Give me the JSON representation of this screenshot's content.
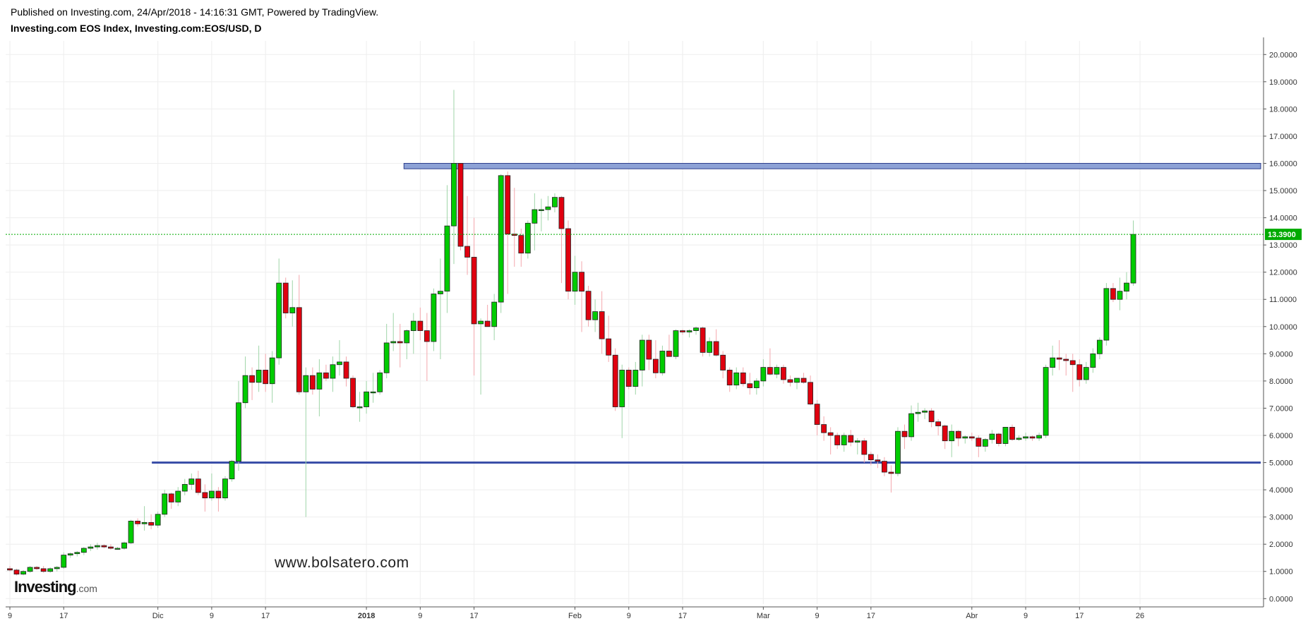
{
  "header": {
    "published": "Published on Investing.com, 24/Apr/2018 - 14:16:31 GMT, Powered by TradingView.",
    "title": "Investing.com EOS Index, Investing.com:EOS/USD, D"
  },
  "watermark": "www.bolsatero.com",
  "logo": {
    "name": "Investing",
    "suffix": ".com"
  },
  "colors": {
    "up": "#00cc00",
    "down": "#e0000f",
    "resistance": "#8da2d6",
    "support": "#3b4fa8",
    "price_line": "#00aa00"
  },
  "chart_data": {
    "type": "candlestick",
    "ylim": [
      -0.2,
      20.5
    ],
    "y_ticks": [
      "0.0000",
      "1.0000",
      "2.0000",
      "3.0000",
      "4.0000",
      "5.0000",
      "6.0000",
      "7.0000",
      "8.0000",
      "9.0000",
      "10.0000",
      "11.0000",
      "12.0000",
      "13.0000",
      "14.0000",
      "15.0000",
      "16.0000",
      "17.0000",
      "18.0000",
      "19.0000",
      "20.0000"
    ],
    "x_ticks": [
      {
        "label": "9",
        "day": 0
      },
      {
        "label": "17",
        "day": 8
      },
      {
        "label": "Dic",
        "day": 22
      },
      {
        "label": "9",
        "day": 30
      },
      {
        "label": "17",
        "day": 38
      },
      {
        "label": "2018",
        "day": 53
      },
      {
        "label": "9",
        "day": 61
      },
      {
        "label": "17",
        "day": 69
      },
      {
        "label": "Feb",
        "day": 84
      },
      {
        "label": "9",
        "day": 92
      },
      {
        "label": "17",
        "day": 100
      },
      {
        "label": "Mar",
        "day": 112
      },
      {
        "label": "9",
        "day": 120
      },
      {
        "label": "17",
        "day": 128
      },
      {
        "label": "Abr",
        "day": 143
      },
      {
        "label": "9",
        "day": 151
      },
      {
        "label": "17",
        "day": 159
      },
      {
        "label": "26",
        "day": 168
      }
    ],
    "last_price": "13.3900",
    "zones": [
      {
        "type": "resistance",
        "from": 15.8,
        "to": 16.0,
        "start_day": 59
      },
      {
        "type": "support",
        "level": 5.0,
        "start_day": 21
      }
    ],
    "ohlc": [
      [
        1.1,
        1.2,
        1.0,
        1.05
      ],
      [
        1.05,
        1.1,
        0.85,
        0.9
      ],
      [
        0.9,
        1.05,
        0.85,
        1.0
      ],
      [
        1.0,
        1.2,
        0.95,
        1.15
      ],
      [
        1.15,
        1.2,
        1.05,
        1.1
      ],
      [
        1.1,
        1.2,
        0.95,
        1.0
      ],
      [
        1.0,
        1.15,
        0.95,
        1.1
      ],
      [
        1.1,
        1.2,
        1.0,
        1.15
      ],
      [
        1.15,
        1.7,
        1.1,
        1.6
      ],
      [
        1.6,
        1.7,
        1.5,
        1.65
      ],
      [
        1.65,
        1.75,
        1.55,
        1.7
      ],
      [
        1.7,
        1.9,
        1.6,
        1.85
      ],
      [
        1.85,
        2.0,
        1.75,
        1.9
      ],
      [
        1.9,
        2.05,
        1.8,
        1.95
      ],
      [
        1.95,
        2.0,
        1.85,
        1.9
      ],
      [
        1.9,
        2.0,
        1.8,
        1.85
      ],
      [
        1.85,
        1.9,
        1.8,
        1.85
      ],
      [
        1.85,
        2.1,
        1.8,
        2.05
      ],
      [
        2.05,
        2.9,
        2.0,
        2.85
      ],
      [
        2.85,
        2.95,
        2.65,
        2.75
      ],
      [
        2.75,
        3.4,
        2.5,
        2.8
      ],
      [
        2.8,
        3.1,
        2.55,
        2.7
      ],
      [
        2.7,
        3.2,
        2.6,
        3.1
      ],
      [
        3.1,
        4.0,
        3.0,
        3.85
      ],
      [
        3.85,
        3.9,
        3.3,
        3.55
      ],
      [
        3.55,
        4.1,
        3.4,
        3.95
      ],
      [
        3.95,
        4.4,
        3.8,
        4.2
      ],
      [
        4.2,
        4.6,
        4.0,
        4.4
      ],
      [
        4.4,
        4.7,
        3.8,
        3.9
      ],
      [
        3.9,
        4.2,
        3.2,
        3.7
      ],
      [
        3.7,
        4.6,
        3.6,
        3.95
      ],
      [
        3.95,
        4.1,
        3.2,
        3.7
      ],
      [
        3.7,
        4.5,
        3.6,
        4.4
      ],
      [
        4.4,
        5.1,
        4.3,
        5.05
      ],
      [
        5.05,
        8.0,
        4.7,
        7.2
      ],
      [
        7.2,
        8.9,
        7.0,
        8.2
      ],
      [
        8.2,
        8.5,
        7.3,
        7.95
      ],
      [
        7.95,
        9.3,
        7.6,
        8.4
      ],
      [
        8.4,
        9.0,
        7.6,
        7.9
      ],
      [
        7.9,
        9.1,
        7.2,
        8.85
      ],
      [
        8.85,
        12.5,
        8.6,
        11.6
      ],
      [
        11.6,
        11.8,
        10.3,
        10.5
      ],
      [
        10.5,
        11.7,
        10.0,
        10.7
      ],
      [
        10.7,
        11.9,
        7.5,
        7.6
      ],
      [
        7.6,
        8.5,
        3.0,
        8.2
      ],
      [
        8.2,
        8.5,
        7.5,
        7.7
      ],
      [
        7.7,
        8.8,
        6.7,
        8.3
      ],
      [
        8.3,
        8.6,
        8.0,
        8.1
      ],
      [
        8.1,
        8.9,
        7.6,
        8.6
      ],
      [
        8.6,
        9.5,
        8.2,
        8.7
      ],
      [
        8.7,
        8.9,
        7.8,
        8.1
      ],
      [
        8.1,
        8.2,
        7.0,
        7.05
      ],
      [
        7.05,
        7.6,
        6.5,
        7.05
      ],
      [
        7.05,
        8.0,
        6.8,
        7.6
      ],
      [
        7.6,
        8.3,
        7.2,
        7.6
      ],
      [
        7.6,
        8.4,
        7.5,
        8.3
      ],
      [
        8.3,
        10.1,
        8.1,
        9.4
      ],
      [
        9.4,
        10.5,
        9.1,
        9.45
      ],
      [
        9.45,
        10.1,
        8.5,
        9.4
      ],
      [
        9.4,
        9.9,
        8.8,
        9.85
      ],
      [
        9.85,
        10.5,
        9.0,
        10.2
      ],
      [
        10.2,
        10.7,
        9.5,
        9.85
      ],
      [
        9.85,
        10.5,
        8.0,
        9.45
      ],
      [
        9.45,
        11.4,
        9.1,
        11.2
      ],
      [
        11.2,
        12.5,
        8.8,
        11.3
      ],
      [
        11.3,
        15.2,
        10.5,
        13.7
      ],
      [
        13.7,
        18.7,
        12.3,
        16.0
      ],
      [
        16.0,
        16.0,
        12.8,
        12.95
      ],
      [
        12.95,
        14.8,
        11.9,
        12.55
      ],
      [
        12.55,
        14.0,
        8.2,
        10.1
      ],
      [
        10.1,
        10.3,
        7.5,
        10.2
      ],
      [
        10.2,
        10.8,
        10.0,
        10.0
      ],
      [
        10.0,
        11.2,
        9.5,
        10.9
      ],
      [
        10.9,
        15.6,
        10.5,
        15.55
      ],
      [
        15.55,
        15.7,
        11.2,
        13.4
      ],
      [
        13.4,
        15.1,
        12.2,
        13.35
      ],
      [
        13.35,
        13.6,
        12.2,
        12.7
      ],
      [
        12.7,
        13.9,
        12.5,
        13.8
      ],
      [
        13.8,
        14.9,
        12.8,
        14.3
      ],
      [
        14.3,
        14.7,
        13.5,
        14.3
      ],
      [
        14.3,
        14.8,
        13.9,
        14.4
      ],
      [
        14.4,
        14.9,
        14.2,
        14.75
      ],
      [
        14.75,
        14.8,
        11.6,
        13.6
      ],
      [
        13.6,
        13.9,
        11.0,
        11.3
      ],
      [
        11.3,
        12.6,
        10.8,
        12.0
      ],
      [
        12.0,
        12.4,
        9.8,
        11.3
      ],
      [
        11.3,
        11.5,
        10.0,
        10.25
      ],
      [
        10.25,
        11.0,
        9.8,
        10.55
      ],
      [
        10.55,
        11.3,
        9.0,
        9.55
      ],
      [
        9.55,
        10.4,
        8.7,
        8.95
      ],
      [
        8.95,
        9.2,
        6.9,
        7.05
      ],
      [
        7.05,
        8.6,
        5.9,
        8.4
      ],
      [
        8.4,
        8.5,
        7.7,
        7.8
      ],
      [
        7.8,
        8.7,
        7.5,
        8.4
      ],
      [
        8.4,
        9.7,
        7.8,
        9.5
      ],
      [
        9.5,
        9.7,
        8.4,
        8.8
      ],
      [
        8.8,
        9.5,
        8.1,
        8.3
      ],
      [
        8.3,
        9.3,
        8.2,
        9.1
      ],
      [
        9.1,
        9.7,
        8.9,
        8.9
      ],
      [
        8.9,
        9.9,
        8.8,
        9.85
      ],
      [
        9.85,
        9.9,
        9.7,
        9.8
      ],
      [
        9.8,
        9.9,
        9.6,
        9.85
      ],
      [
        9.85,
        10.0,
        9.7,
        9.95
      ],
      [
        9.95,
        10.0,
        8.9,
        9.05
      ],
      [
        9.05,
        9.6,
        8.9,
        9.45
      ],
      [
        9.45,
        9.9,
        8.9,
        8.95
      ],
      [
        8.95,
        9.1,
        8.1,
        8.4
      ],
      [
        8.4,
        8.5,
        7.6,
        7.85
      ],
      [
        7.85,
        8.5,
        7.7,
        8.3
      ],
      [
        8.3,
        8.5,
        7.8,
        7.9
      ],
      [
        7.9,
        8.3,
        7.5,
        7.75
      ],
      [
        7.75,
        8.1,
        7.5,
        8.0
      ],
      [
        8.0,
        8.8,
        7.8,
        8.5
      ],
      [
        8.5,
        9.2,
        8.2,
        8.25
      ],
      [
        8.25,
        8.6,
        8.1,
        8.5
      ],
      [
        8.5,
        8.6,
        7.9,
        8.05
      ],
      [
        8.05,
        8.2,
        7.8,
        7.95
      ],
      [
        7.95,
        8.1,
        7.7,
        8.1
      ],
      [
        8.1,
        8.3,
        7.9,
        7.95
      ],
      [
        7.95,
        8.2,
        7.1,
        7.15
      ],
      [
        7.15,
        7.3,
        6.0,
        6.4
      ],
      [
        6.4,
        6.7,
        5.8,
        6.1
      ],
      [
        6.1,
        6.3,
        5.3,
        6.0
      ],
      [
        6.0,
        6.1,
        5.5,
        5.65
      ],
      [
        5.65,
        6.1,
        5.4,
        6.0
      ],
      [
        6.0,
        6.2,
        5.6,
        5.75
      ],
      [
        5.75,
        5.9,
        5.3,
        5.8
      ],
      [
        5.8,
        5.9,
        5.0,
        5.3
      ],
      [
        5.3,
        5.4,
        4.9,
        5.1
      ],
      [
        5.1,
        5.3,
        4.8,
        5.05
      ],
      [
        5.05,
        5.2,
        4.5,
        4.65
      ],
      [
        4.65,
        4.9,
        3.9,
        4.6
      ],
      [
        4.6,
        6.3,
        4.5,
        6.15
      ],
      [
        6.15,
        6.4,
        5.5,
        5.95
      ],
      [
        5.95,
        7.1,
        5.8,
        6.8
      ],
      [
        6.8,
        7.2,
        6.5,
        6.85
      ],
      [
        6.85,
        7.0,
        6.6,
        6.9
      ],
      [
        6.9,
        7.0,
        6.3,
        6.5
      ],
      [
        6.5,
        6.6,
        6.0,
        6.35
      ],
      [
        6.35,
        6.4,
        5.5,
        5.8
      ],
      [
        5.8,
        6.4,
        5.2,
        6.15
      ],
      [
        6.15,
        6.2,
        5.6,
        5.9
      ],
      [
        5.9,
        6.0,
        5.7,
        5.95
      ],
      [
        5.95,
        6.1,
        5.8,
        5.9
      ],
      [
        5.9,
        6.0,
        5.2,
        5.6
      ],
      [
        5.6,
        5.9,
        5.4,
        5.85
      ],
      [
        5.85,
        6.2,
        5.7,
        6.05
      ],
      [
        6.05,
        6.1,
        5.6,
        5.7
      ],
      [
        5.7,
        6.3,
        5.6,
        6.3
      ],
      [
        6.3,
        6.4,
        5.8,
        5.85
      ],
      [
        5.85,
        6.0,
        5.8,
        5.9
      ],
      [
        5.9,
        6.1,
        5.8,
        5.95
      ],
      [
        5.95,
        6.0,
        5.8,
        5.9
      ],
      [
        5.9,
        6.1,
        5.8,
        6.0
      ],
      [
        6.0,
        8.6,
        5.9,
        8.5
      ],
      [
        8.5,
        9.3,
        8.2,
        8.85
      ],
      [
        8.85,
        9.5,
        8.4,
        8.8
      ],
      [
        8.8,
        9.0,
        8.2,
        8.75
      ],
      [
        8.75,
        9.0,
        7.6,
        8.6
      ],
      [
        8.6,
        8.8,
        7.8,
        8.05
      ],
      [
        8.05,
        8.7,
        7.9,
        8.5
      ],
      [
        8.5,
        9.2,
        8.3,
        9.0
      ],
      [
        9.0,
        9.6,
        8.8,
        9.5
      ],
      [
        9.5,
        11.6,
        9.3,
        11.4
      ],
      [
        11.4,
        11.6,
        10.9,
        11.0
      ],
      [
        11.0,
        11.8,
        10.6,
        11.3
      ],
      [
        11.3,
        12.0,
        11.0,
        11.6
      ],
      [
        11.6,
        13.9,
        11.5,
        13.39
      ]
    ]
  }
}
